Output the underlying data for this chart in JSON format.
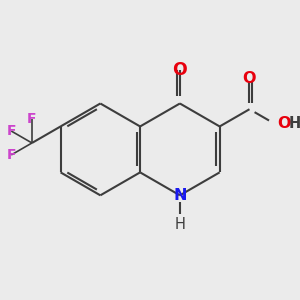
{
  "bg_color": "#ebebeb",
  "bond_color": "#3d3d3d",
  "bond_width": 1.5,
  "dbo": 0.055,
  "atom_colors": {
    "O": "#e8000d",
    "N": "#1a1aee",
    "F": "#cc44cc",
    "C": "#3d3d3d"
  },
  "fs": 11.5,
  "BL": 0.78
}
